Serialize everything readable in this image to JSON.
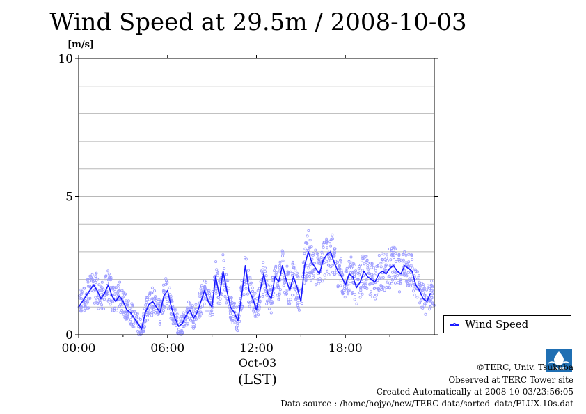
{
  "chart_data": {
    "type": "line",
    "title": "Wind Speed at 29.5m / 2008-10-03",
    "ylabel": "[m/s]",
    "xlabel": "(LST)",
    "date_label": "Oct-03",
    "xlim": [
      0,
      24
    ],
    "ylim": [
      0,
      10
    ],
    "x_ticks": [
      0,
      6,
      12,
      18
    ],
    "x_tick_labels": [
      "00:00",
      "06:00",
      "12:00",
      "18:00"
    ],
    "y_ticks": [
      0,
      5,
      10
    ],
    "y_tick_labels": [
      "0",
      "5",
      "10"
    ],
    "grid": true,
    "legend_position": "outside-right-bottom",
    "series": [
      {
        "name": "Wind Speed",
        "color": "#1a1aff",
        "x": [
          0.0,
          0.25,
          0.5,
          0.75,
          1.0,
          1.25,
          1.5,
          1.75,
          2.0,
          2.25,
          2.5,
          2.75,
          3.0,
          3.25,
          3.5,
          3.75,
          4.0,
          4.25,
          4.5,
          4.75,
          5.0,
          5.25,
          5.5,
          5.75,
          6.0,
          6.25,
          6.5,
          6.75,
          7.0,
          7.25,
          7.5,
          7.75,
          8.0,
          8.25,
          8.5,
          8.75,
          9.0,
          9.25,
          9.5,
          9.75,
          10.0,
          10.25,
          10.5,
          10.75,
          11.0,
          11.25,
          11.5,
          11.75,
          12.0,
          12.25,
          12.5,
          12.75,
          13.0,
          13.25,
          13.5,
          13.75,
          14.0,
          14.25,
          14.5,
          14.75,
          15.0,
          15.25,
          15.5,
          15.75,
          16.0,
          16.25,
          16.5,
          16.75,
          17.0,
          17.25,
          17.5,
          17.75,
          18.0,
          18.25,
          18.5,
          18.75,
          19.0,
          19.25,
          19.5,
          19.75,
          20.0,
          20.25,
          20.5,
          20.75,
          21.0,
          21.25,
          21.5,
          21.75,
          22.0,
          22.25,
          22.5,
          22.75,
          23.0,
          23.25,
          23.5,
          23.75
        ],
        "values": [
          1.0,
          1.2,
          1.4,
          1.6,
          1.8,
          1.6,
          1.3,
          1.5,
          1.8,
          1.4,
          1.2,
          1.4,
          1.2,
          0.9,
          0.8,
          0.6,
          0.4,
          0.2,
          0.8,
          1.1,
          1.2,
          1.0,
          0.8,
          1.4,
          1.6,
          1.0,
          0.6,
          0.3,
          0.4,
          0.7,
          0.9,
          0.6,
          0.8,
          1.2,
          1.6,
          1.2,
          1.0,
          2.1,
          1.4,
          2.3,
          1.6,
          1.0,
          0.8,
          0.5,
          1.4,
          2.5,
          1.6,
          1.3,
          0.9,
          1.6,
          2.2,
          1.5,
          1.3,
          2.1,
          1.9,
          2.5,
          2.0,
          1.6,
          2.1,
          1.7,
          1.2,
          2.5,
          3.0,
          2.6,
          2.4,
          2.2,
          2.7,
          2.9,
          3.0,
          2.6,
          2.3,
          2.1,
          1.8,
          2.2,
          2.1,
          1.7,
          1.9,
          2.3,
          2.1,
          2.0,
          1.9,
          2.2,
          2.3,
          2.2,
          2.4,
          2.5,
          2.3,
          2.2,
          2.5,
          2.4,
          2.3,
          1.8,
          1.6,
          1.3,
          1.2,
          1.5
        ]
      }
    ]
  },
  "footer": {
    "copyright": "©TERC, Univ. Tsukuba",
    "observed": "Observed at TERC Tower site",
    "created": "Created Automatically at 2008-10-03/23:56:05",
    "source": "Data source : /home/hojyo/new/TERC-data/sorted_data/FLUX.10s.dat",
    "logo_text": "TERC"
  }
}
